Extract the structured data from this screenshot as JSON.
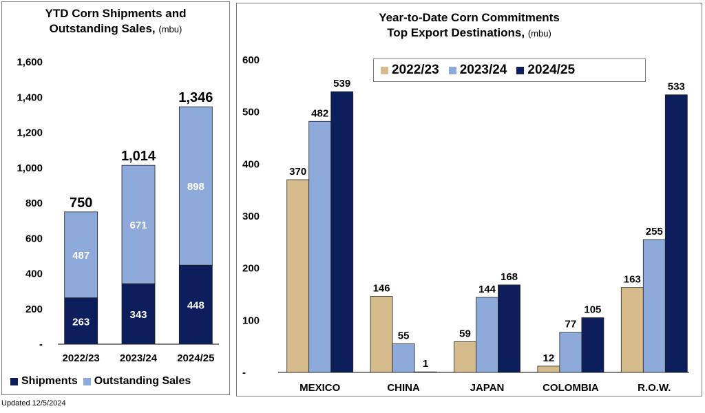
{
  "left_chart": {
    "title_line1": "YTD Corn Shipments and",
    "title_line2": "Outstanding Sales,",
    "unit": "(mbu)"
  },
  "right_chart": {
    "title_line1": "Year-to-Date Corn Commitments",
    "title_line2": "Top Export Destinations,",
    "unit": "(mbu)"
  },
  "footnote": "Updated 12/5/2024",
  "colors": {
    "shipments": "#0c1f5c",
    "outstanding": "#8eaadb",
    "y2022": "#d6bc8c",
    "y2023": "#8eaadb",
    "y2024": "#0c1f5c"
  },
  "chart_data": [
    {
      "type": "bar",
      "stacked": true,
      "categories": [
        "2022/23",
        "2023/24",
        "2024/25"
      ],
      "series": [
        {
          "name": "Shipments",
          "values": [
            263,
            343,
            448
          ]
        },
        {
          "name": "Outstanding Sales",
          "values": [
            487,
            671,
            898
          ]
        }
      ],
      "totals": [
        750,
        1014,
        1346
      ],
      "total_labels": [
        "750",
        "1,014",
        "1,346"
      ],
      "ylim": [
        0,
        1600
      ],
      "yticks": [
        0,
        200,
        400,
        600,
        800,
        1000,
        1200,
        1400,
        1600
      ],
      "ytick_labels": [
        "-",
        "200",
        "400",
        "600",
        "800",
        "1,000",
        "1,200",
        "1,400",
        "1,600"
      ],
      "legend_position": "bottom"
    },
    {
      "type": "bar",
      "categories": [
        "MEXICO",
        "CHINA",
        "JAPAN",
        "COLOMBIA",
        "R.O.W."
      ],
      "series": [
        {
          "name": "2022/23",
          "values": [
            370,
            146,
            59,
            12,
            163
          ]
        },
        {
          "name": "2023/24",
          "values": [
            482,
            55,
            144,
            77,
            255
          ]
        },
        {
          "name": "2024/25",
          "values": [
            539,
            1,
            168,
            105,
            533
          ]
        }
      ],
      "ylim": [
        0,
        600
      ],
      "yticks": [
        0,
        100,
        200,
        300,
        400,
        500,
        600
      ],
      "ytick_labels": [
        "-",
        "100",
        "200",
        "300",
        "400",
        "500",
        "600"
      ],
      "legend_position": "top-center"
    }
  ]
}
